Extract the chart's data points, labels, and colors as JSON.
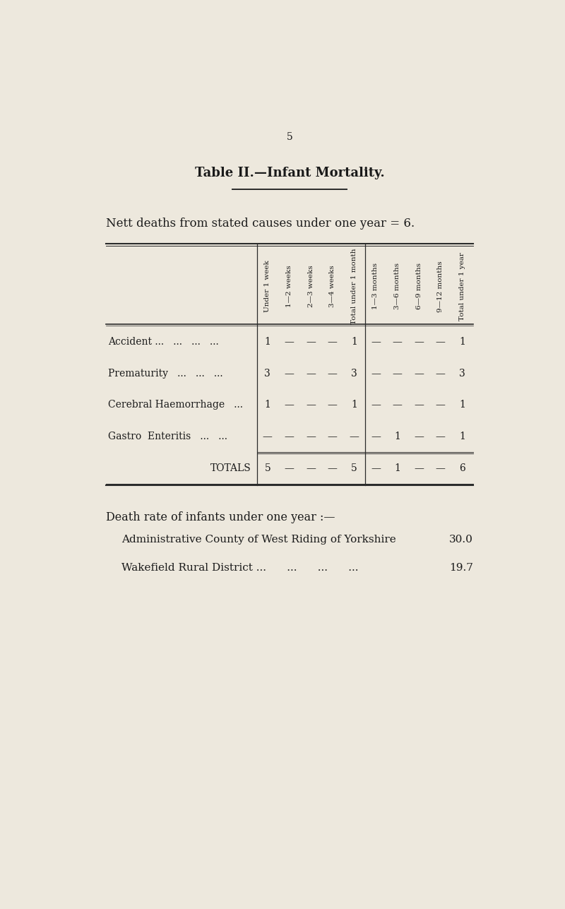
{
  "bg_color": "#ede8dd",
  "page_number": "5",
  "title": "Table II.—Infant Mortality.",
  "subtitle": "Nett deaths from stated causes under one year = 6.",
  "col_headers": [
    "Under 1 week",
    "1—2 weeks",
    "2—3 weeks",
    "3—4 weeks",
    "Total under 1 month",
    "1—3 months",
    "3—6 months",
    "6—9 months",
    "9—12 months",
    "Total under 1 year"
  ],
  "row_labels": [
    "Accident ...   ...   ...   ...",
    "Prematurity   ...   ...   ...",
    "Cerebral Haemorrhage   ...",
    "Gastro  Enteritis   ...   ...",
    "TOTALS"
  ],
  "table_data": [
    [
      "1",
      "—",
      "—",
      "—",
      "1",
      "—",
      "—",
      "—",
      "—",
      "1"
    ],
    [
      "3",
      "—",
      "—",
      "—",
      "3",
      "—",
      "—",
      "—",
      "—",
      "3"
    ],
    [
      "1",
      "—",
      "—",
      "—",
      "1",
      "—",
      "—",
      "—",
      "—",
      "1"
    ],
    [
      "—",
      "—",
      "—",
      "—",
      "—",
      "—",
      "1",
      "—",
      "—",
      "1"
    ],
    [
      "5",
      "—",
      "—",
      "—",
      "5",
      "—",
      "1",
      "—",
      "—",
      "6"
    ]
  ],
  "footer_text": "Death rate of infants under one year :—",
  "footer_rows": [
    [
      "Administrative County of West Riding of Yorkshire",
      "30.0"
    ],
    [
      "Wakefield Rural District ...      ...      ...      ...",
      "19.7"
    ]
  ],
  "text_color": "#1a1a1a",
  "line_color": "#2a2a2a"
}
